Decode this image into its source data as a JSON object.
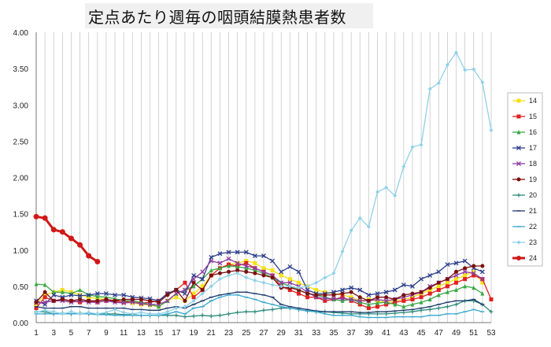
{
  "chart_data": {
    "type": "line",
    "title": "定点あたり週毎の咽頭結膜熱患者数",
    "xlabel": "",
    "ylabel": "",
    "ylim": [
      0,
      4
    ],
    "yticks": [
      "0.00",
      "0.50",
      "1.00",
      "1.50",
      "2.00",
      "2.50",
      "3.00",
      "3.50",
      "4.00"
    ],
    "xticks": [
      "1",
      "3",
      "5",
      "7",
      "9",
      "11",
      "13",
      "15",
      "17",
      "19",
      "21",
      "23",
      "25",
      "27",
      "29",
      "31",
      "33",
      "35",
      "37",
      "39",
      "41",
      "43",
      "45",
      "47",
      "49",
      "51",
      "53"
    ],
    "x": [
      1,
      2,
      3,
      4,
      5,
      6,
      7,
      8,
      9,
      10,
      11,
      12,
      13,
      14,
      15,
      16,
      17,
      18,
      19,
      20,
      21,
      22,
      23,
      24,
      25,
      26,
      27,
      28,
      29,
      30,
      31,
      32,
      33,
      34,
      35,
      36,
      37,
      38,
      39,
      40,
      41,
      42,
      43,
      44,
      45,
      46,
      47,
      48,
      49,
      50,
      51,
      52,
      53
    ],
    "grid": "vertical",
    "legend_position": "right",
    "series": [
      {
        "name": "14",
        "color": "#f5e11a",
        "marker": "square",
        "values": [
          0.25,
          0.38,
          0.42,
          0.45,
          0.42,
          0.38,
          0.35,
          0.33,
          0.32,
          0.3,
          0.28,
          0.27,
          0.25,
          0.24,
          0.22,
          0.3,
          0.35,
          0.3,
          0.4,
          0.5,
          0.65,
          0.75,
          0.8,
          0.82,
          0.85,
          0.82,
          0.75,
          0.72,
          0.65,
          0.6,
          0.55,
          0.5,
          0.45,
          0.42,
          0.4,
          0.38,
          0.35,
          0.3,
          0.32,
          0.3,
          0.28,
          0.3,
          0.32,
          0.35,
          0.4,
          0.45,
          0.5,
          0.55,
          0.6,
          0.65,
          0.7,
          0.55,
          null
        ]
      },
      {
        "name": "15",
        "color": "#e02020",
        "marker": "square",
        "values": [
          0.2,
          0.35,
          0.3,
          0.32,
          0.3,
          0.28,
          0.3,
          0.28,
          0.3,
          0.3,
          0.28,
          0.3,
          0.27,
          0.28,
          0.3,
          0.4,
          0.45,
          0.55,
          0.35,
          0.45,
          0.65,
          0.75,
          0.8,
          0.78,
          0.82,
          0.75,
          0.7,
          0.65,
          0.5,
          0.45,
          0.4,
          0.35,
          0.35,
          0.3,
          0.32,
          0.35,
          0.3,
          0.25,
          0.2,
          0.22,
          0.25,
          0.28,
          0.3,
          0.32,
          0.35,
          0.4,
          0.45,
          0.5,
          0.55,
          0.6,
          0.65,
          0.6,
          0.32
        ]
      },
      {
        "name": "16",
        "color": "#3aa845",
        "marker": "triangle",
        "values": [
          0.53,
          0.52,
          0.42,
          0.42,
          0.4,
          0.45,
          0.38,
          0.36,
          0.35,
          0.33,
          0.3,
          0.3,
          0.28,
          0.25,
          0.22,
          0.3,
          0.4,
          0.45,
          0.5,
          0.6,
          0.72,
          0.75,
          0.78,
          0.77,
          0.75,
          0.72,
          0.68,
          0.62,
          0.55,
          0.5,
          0.45,
          0.4,
          0.38,
          0.35,
          0.32,
          0.3,
          0.32,
          0.28,
          0.25,
          0.27,
          0.28,
          0.25,
          0.22,
          0.25,
          0.28,
          0.32,
          0.38,
          0.42,
          0.45,
          0.5,
          0.48,
          0.4,
          null
        ]
      },
      {
        "name": "17",
        "color": "#2c3f8c",
        "marker": "x",
        "values": [
          0.3,
          0.25,
          0.38,
          0.35,
          0.38,
          0.37,
          0.38,
          0.4,
          0.4,
          0.38,
          0.38,
          0.35,
          0.34,
          0.33,
          0.3,
          0.4,
          0.45,
          0.4,
          0.65,
          0.6,
          0.9,
          0.95,
          0.97,
          0.97,
          0.97,
          0.92,
          0.92,
          0.85,
          0.7,
          0.77,
          0.7,
          0.45,
          0.4,
          0.4,
          0.42,
          0.45,
          0.48,
          0.45,
          0.38,
          0.4,
          0.42,
          0.45,
          0.52,
          0.5,
          0.6,
          0.65,
          0.7,
          0.8,
          0.82,
          0.85,
          0.75,
          0.7,
          null
        ]
      },
      {
        "name": "18",
        "color": "#8e3ca0",
        "marker": "x",
        "values": [
          0.27,
          0.28,
          0.3,
          0.3,
          0.28,
          0.3,
          0.28,
          0.28,
          0.3,
          0.28,
          0.27,
          0.28,
          0.26,
          0.25,
          0.25,
          0.3,
          0.4,
          0.45,
          0.6,
          0.7,
          0.85,
          0.82,
          0.88,
          0.82,
          0.78,
          0.75,
          0.7,
          0.65,
          0.55,
          0.55,
          0.5,
          0.42,
          0.35,
          0.33,
          0.33,
          0.33,
          0.32,
          0.3,
          0.3,
          0.32,
          0.3,
          0.32,
          0.35,
          0.38,
          0.42,
          0.5,
          0.55,
          0.6,
          0.65,
          0.7,
          0.68,
          0.6,
          null
        ]
      },
      {
        "name": "19",
        "color": "#7a1010",
        "marker": "circle",
        "values": [
          0.28,
          0.42,
          0.3,
          0.32,
          0.3,
          0.32,
          0.3,
          0.3,
          0.32,
          0.3,
          0.32,
          0.32,
          0.32,
          0.3,
          0.28,
          0.38,
          0.45,
          0.3,
          0.55,
          0.45,
          0.65,
          0.68,
          0.7,
          0.72,
          0.7,
          0.68,
          0.65,
          0.62,
          0.48,
          0.48,
          0.45,
          0.4,
          0.38,
          0.38,
          0.38,
          0.4,
          0.42,
          0.35,
          0.3,
          0.35,
          0.35,
          0.32,
          0.38,
          0.4,
          0.42,
          0.48,
          0.55,
          0.6,
          0.7,
          0.75,
          0.78,
          0.78,
          null
        ]
      },
      {
        "name": "20",
        "color": "#2a8a7a",
        "marker": "plus",
        "values": [
          0.15,
          0.15,
          0.12,
          0.13,
          0.12,
          0.13,
          0.12,
          0.12,
          0.12,
          0.12,
          0.11,
          0.11,
          0.1,
          0.1,
          0.1,
          0.1,
          0.1,
          0.08,
          0.09,
          0.1,
          0.09,
          0.1,
          0.12,
          0.14,
          0.15,
          0.15,
          0.17,
          0.18,
          0.2,
          0.2,
          0.18,
          0.16,
          0.15,
          0.15,
          0.14,
          0.13,
          0.12,
          0.12,
          0.12,
          0.12,
          0.12,
          0.13,
          0.14,
          0.15,
          0.17,
          0.18,
          0.2,
          0.22,
          0.25,
          0.3,
          0.3,
          0.25,
          0.15
        ]
      },
      {
        "name": "21",
        "color": "#1f3b6e",
        "marker": "dash",
        "values": [
          0.22,
          0.2,
          0.2,
          0.2,
          0.22,
          0.22,
          0.2,
          0.2,
          0.2,
          0.2,
          0.2,
          0.18,
          0.18,
          0.17,
          0.17,
          0.2,
          0.22,
          0.2,
          0.25,
          0.3,
          0.35,
          0.38,
          0.4,
          0.42,
          0.42,
          0.4,
          0.38,
          0.35,
          0.25,
          0.22,
          0.2,
          0.18,
          0.16,
          0.15,
          0.15,
          0.15,
          0.15,
          0.14,
          0.14,
          0.15,
          0.15,
          0.16,
          0.17,
          0.18,
          0.2,
          0.22,
          0.25,
          0.28,
          0.3,
          0.3,
          0.32,
          0.25,
          null
        ]
      },
      {
        "name": "22",
        "color": "#37a8d0",
        "marker": "dash",
        "values": [
          0.12,
          0.12,
          0.12,
          0.12,
          0.12,
          0.12,
          0.12,
          0.11,
          0.11,
          0.1,
          0.1,
          0.1,
          0.1,
          0.1,
          0.1,
          0.12,
          0.15,
          0.12,
          0.2,
          0.22,
          0.3,
          0.35,
          0.38,
          0.38,
          0.35,
          0.32,
          0.28,
          0.25,
          0.22,
          0.2,
          0.18,
          0.16,
          0.15,
          0.12,
          0.1,
          0.1,
          0.1,
          0.08,
          0.07,
          0.07,
          0.07,
          0.08,
          0.08,
          0.08,
          0.08,
          0.1,
          0.1,
          0.12,
          0.12,
          0.15,
          0.18,
          0.15,
          null
        ]
      },
      {
        "name": "23",
        "color": "#8fd0e8",
        "marker": "diamond",
        "values": [
          0.14,
          0.17,
          0.15,
          0.12,
          0.15,
          0.12,
          0.14,
          0.12,
          0.14,
          0.18,
          0.14,
          0.12,
          0.14,
          0.12,
          0.12,
          0.15,
          0.2,
          0.22,
          0.3,
          0.4,
          0.5,
          0.6,
          0.65,
          0.68,
          0.62,
          0.58,
          0.55,
          0.52,
          0.5,
          0.5,
          0.48,
          0.5,
          0.55,
          0.62,
          0.68,
          0.98,
          1.27,
          1.44,
          1.32,
          1.8,
          1.86,
          1.75,
          2.15,
          2.42,
          2.45,
          3.22,
          3.3,
          3.55,
          3.72,
          3.48,
          3.49,
          3.31,
          2.65
        ]
      },
      {
        "name": "24",
        "color": "#d01818",
        "marker": "circle",
        "values": [
          1.46,
          1.44,
          1.28,
          1.25,
          1.16,
          1.07,
          0.92,
          0.84,
          null,
          null,
          null,
          null,
          null,
          null,
          null,
          null,
          null,
          null,
          null,
          null,
          null,
          null,
          null,
          null,
          null,
          null,
          null,
          null,
          null,
          null,
          null,
          null,
          null,
          null,
          null,
          null,
          null,
          null,
          null,
          null,
          null,
          null,
          null,
          null,
          null,
          null,
          null,
          null,
          null,
          null,
          null,
          null,
          null
        ]
      }
    ]
  }
}
